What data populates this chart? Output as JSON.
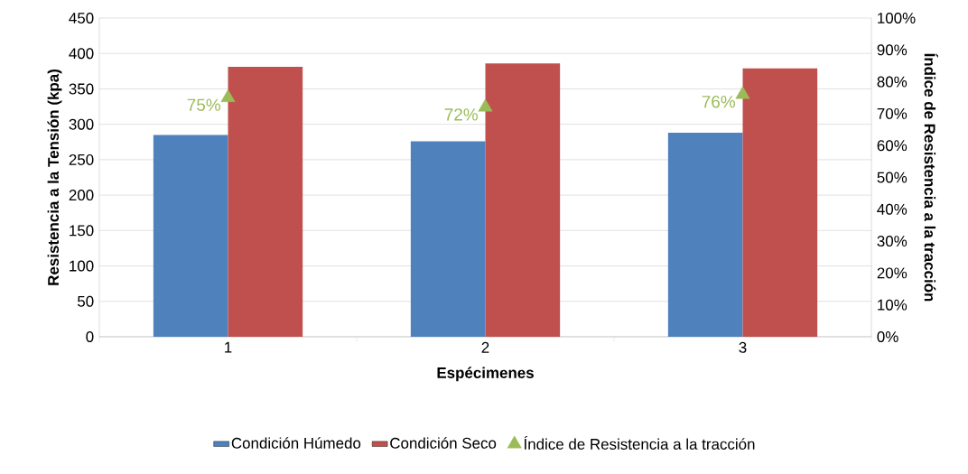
{
  "chart_data": {
    "type": "bar",
    "categories": [
      "1",
      "2",
      "3"
    ],
    "xlabel": "Espécimenes",
    "ylabel": "Resistencia a la Tensión (kpa)",
    "y2label": "Índice de  Resistencia a la tracción",
    "series": [
      {
        "name": "Condición Húmedo",
        "color": "#4f81bd",
        "values": [
          285,
          276,
          288
        ]
      },
      {
        "name": "Condición Seco",
        "color": "#c0504d",
        "values": [
          381,
          386,
          379
        ]
      },
      {
        "name": "Índice de Resistencia a la tracción",
        "type": "scatter",
        "axis": "y2",
        "marker": "triangle",
        "color": "#9bbb59",
        "values": [
          75,
          72,
          76
        ],
        "value_labels": [
          "75%",
          "72%",
          "76%"
        ]
      }
    ],
    "ylim": [
      0,
      450
    ],
    "yticks": [
      0,
      50,
      100,
      150,
      200,
      250,
      300,
      350,
      400,
      450
    ],
    "y2lim": [
      0,
      100
    ],
    "y2ticks": [
      {
        "value": 0,
        "label": "0%"
      },
      {
        "value": 10,
        "label": "10%"
      },
      {
        "value": 20,
        "label": "20%"
      },
      {
        "value": 30,
        "label": "30%"
      },
      {
        "value": 40,
        "label": "40%"
      },
      {
        "value": 50,
        "label": "50%"
      },
      {
        "value": 60,
        "label": "60%"
      },
      {
        "value": 70,
        "label": "70%"
      },
      {
        "value": 80,
        "label": "80%"
      },
      {
        "value": 90,
        "label": "90%"
      },
      {
        "value": 100,
        "label": "100%"
      }
    ],
    "grid": "y",
    "legend": "bottom"
  }
}
